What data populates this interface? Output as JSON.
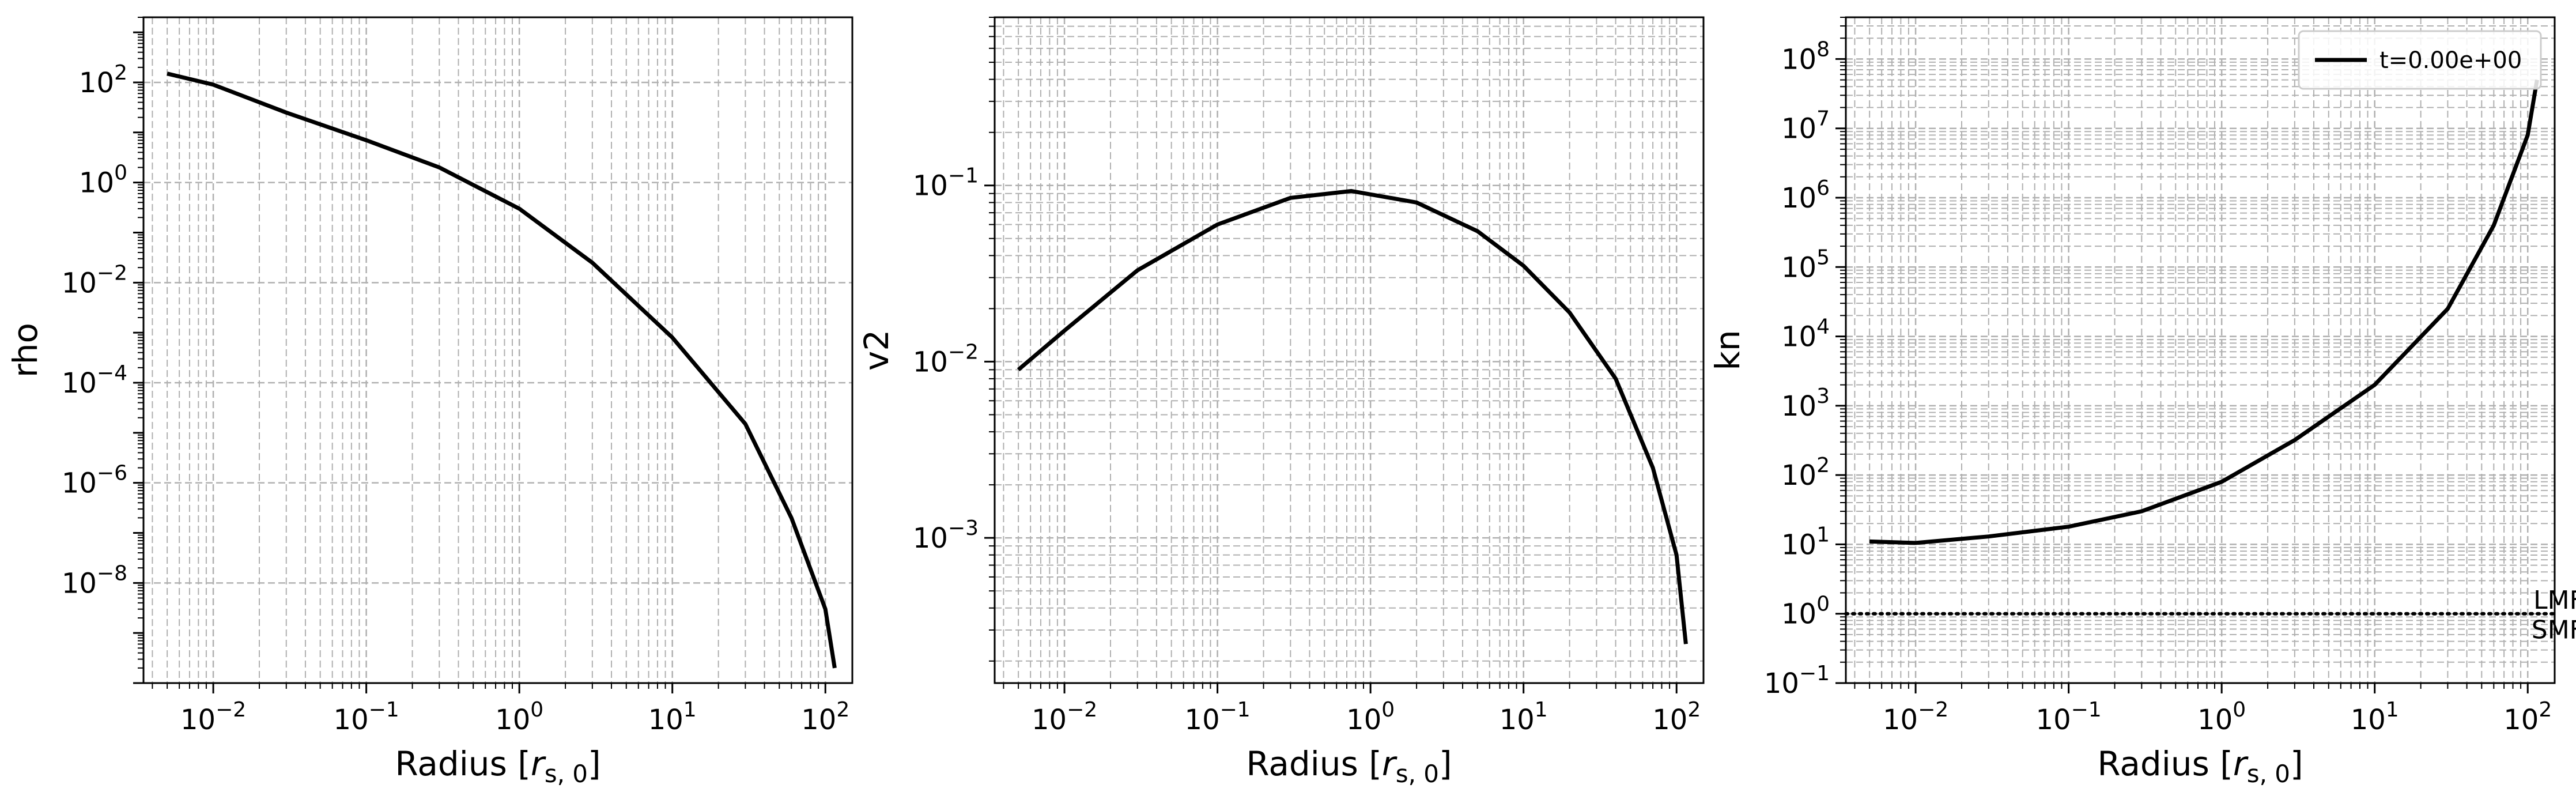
{
  "chart_data": [
    {
      "type": "line",
      "xlabel": "Radius [r_{s,0}]",
      "ylabel": "rho",
      "x_scale": "log",
      "y_scale": "log",
      "xlim": [
        0.0035,
        150
      ],
      "ylim": [
        1e-10,
        2000
      ],
      "grid": true,
      "x_tick_labels": [
        "10^{-2}",
        "10^{-1}",
        "10^{0}",
        "10^{1}",
        "10^{2}"
      ],
      "y_tick_labels": [
        "10^{-8}",
        "10^{-6}",
        "10^{-4}",
        "10^{-2}",
        "10^{0}",
        "10^{2}"
      ],
      "series": [
        {
          "color": "#000000",
          "x": [
            0.005,
            0.01,
            0.03,
            0.1,
            0.3,
            1,
            3,
            10,
            30,
            60,
            100,
            115
          ],
          "y": [
            150,
            90,
            25,
            7,
            2,
            0.3,
            0.025,
            0.0008,
            1.5e-05,
            2e-07,
            3e-09,
            2e-10
          ]
        }
      ]
    },
    {
      "type": "line",
      "xlabel": "Radius [r_{s,0}]",
      "ylabel": "v2",
      "x_scale": "log",
      "y_scale": "log",
      "xlim": [
        0.0035,
        150
      ],
      "ylim": [
        0.00015,
        0.9
      ],
      "grid": true,
      "x_tick_labels": [
        "10^{-2}",
        "10^{-1}",
        "10^{0}",
        "10^{1}",
        "10^{2}"
      ],
      "y_tick_labels": [
        "10^{-3}",
        "10^{-2}",
        "10^{-1}"
      ],
      "series": [
        {
          "color": "#000000",
          "x": [
            0.005,
            0.01,
            0.03,
            0.1,
            0.3,
            0.75,
            2,
            5,
            10,
            20,
            40,
            70,
            100,
            115
          ],
          "y": [
            0.009,
            0.015,
            0.033,
            0.06,
            0.085,
            0.093,
            0.08,
            0.055,
            0.035,
            0.019,
            0.008,
            0.0025,
            0.0008,
            0.00025
          ]
        }
      ]
    },
    {
      "type": "line",
      "xlabel": "Radius [r_{s,0}]",
      "ylabel": "kn",
      "x_scale": "log",
      "y_scale": "log",
      "xlim": [
        0.0035,
        150
      ],
      "ylim": [
        0.1,
        400000000
      ],
      "grid": true,
      "x_tick_labels": [
        "10^{-2}",
        "10^{-1}",
        "10^{0}",
        "10^{1}",
        "10^{2}"
      ],
      "y_tick_labels": [
        "10^{-1}",
        "10^{0}",
        "10^{1}",
        "10^{2}",
        "10^{3}",
        "10^{4}",
        "10^{5}",
        "10^{6}",
        "10^{7}",
        "10^{8}"
      ],
      "legend": {
        "placement": "top-right",
        "entries": [
          "t=0.00e+00"
        ]
      },
      "reference_line": {
        "y": 1,
        "style": "dotted",
        "color": "#000000"
      },
      "annotations": [
        {
          "text": "LMFP",
          "x": 80,
          "y": 1.6
        },
        {
          "text": "SMFP",
          "x": 80,
          "y": 0.6
        }
      ],
      "series": [
        {
          "name": "t=0.00e+00",
          "color": "#000000",
          "x": [
            0.005,
            0.01,
            0.03,
            0.1,
            0.3,
            1,
            3,
            10,
            30,
            60,
            100,
            115
          ],
          "y": [
            11,
            10.5,
            13,
            18,
            30,
            80,
            320,
            2000,
            25000,
            400000,
            8000000,
            50000000
          ]
        }
      ]
    }
  ]
}
